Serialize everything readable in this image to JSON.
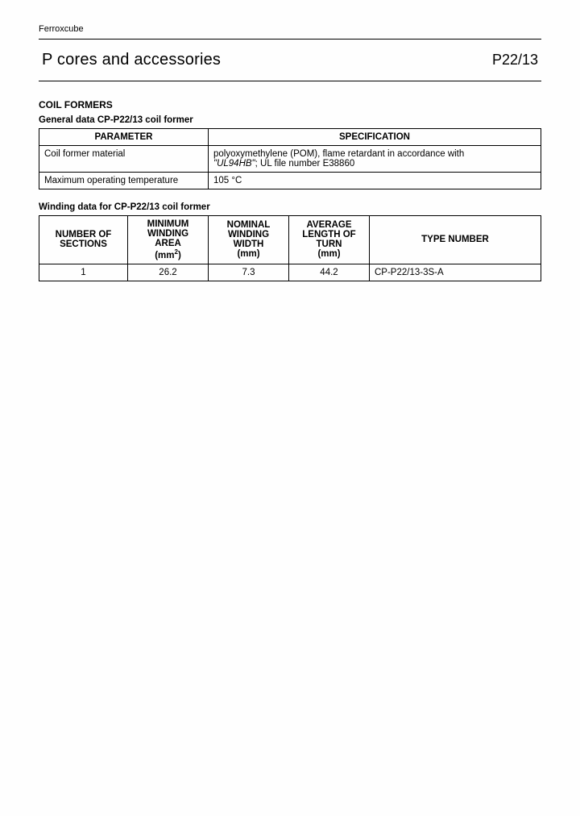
{
  "brand": "Ferroxcube",
  "header": {
    "title": "P cores and accessories",
    "code": "P22/13"
  },
  "section1_title": "COIL FORMERS",
  "table1": {
    "caption": "General data CP-P22/13 coil former",
    "columns": [
      "PARAMETER",
      "SPECIFICATION"
    ],
    "rows": [
      {
        "param": "Coil former material",
        "spec_pre": "polyoxymethylene (POM), flame retardant in accordance with ",
        "spec_italic": "\"UL94HB\"",
        "spec_post": "; UL file number E38860"
      },
      {
        "param": "Maximum operating temperature",
        "spec_pre": "105 °C",
        "spec_italic": "",
        "spec_post": ""
      }
    ]
  },
  "table2": {
    "caption": "Winding data for CP-P22/13 coil former",
    "columns": {
      "c1": "NUMBER OF SECTIONS",
      "c2_l1": "MINIMUM",
      "c2_l2": "WINDING",
      "c2_l3": "AREA",
      "c2_unit_pre": "(mm",
      "c2_unit_sup": "2",
      "c2_unit_post": ")",
      "c3_l1": "NOMINAL",
      "c3_l2": "WINDING",
      "c3_l3": "WIDTH",
      "c3_unit": "(mm)",
      "c4_l1": "AVERAGE",
      "c4_l2": "LENGTH OF",
      "c4_l3": "TURN",
      "c4_unit": "(mm)",
      "c5": "TYPE NUMBER"
    },
    "rows": [
      {
        "sections": "1",
        "area": "26.2",
        "width": "7.3",
        "turn": "44.2",
        "type": "CP-P22/13-3S-A"
      }
    ]
  }
}
